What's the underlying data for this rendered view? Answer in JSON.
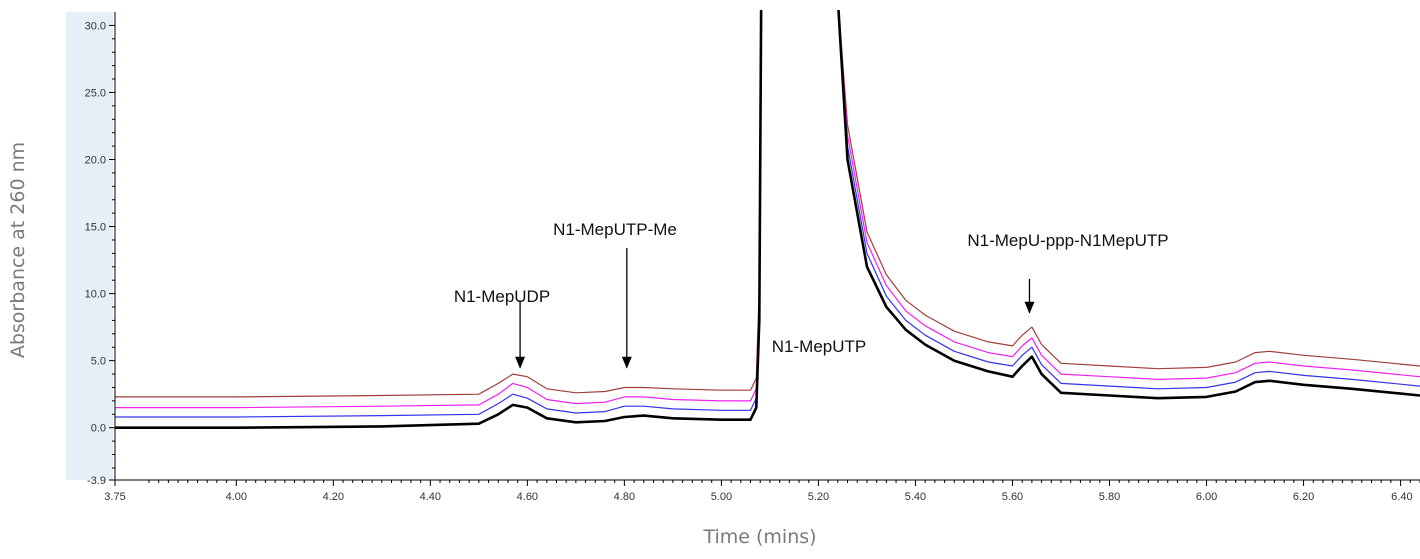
{
  "chart_data": {
    "type": "line",
    "title": "",
    "xlabel": "Time (mins)",
    "ylabel": "Absorbance at 260 nm",
    "xlim": [
      3.75,
      6.44
    ],
    "ylim": [
      -3.9,
      31.0
    ],
    "grid": false,
    "x_ticks": [
      "3.75",
      "4.00",
      "4.20",
      "4.40",
      "4.60",
      "4.80",
      "5.00",
      "5.20",
      "5.40",
      "5.60",
      "5.80",
      "6.00",
      "6.20",
      "6.40"
    ],
    "y_ticks": [
      "30.0",
      "25.0",
      "20.0",
      "15.0",
      "10.0",
      "5.0",
      "0.0",
      "-3.9"
    ],
    "series": [
      {
        "color": "#000000",
        "x": [
          3.75,
          4.0,
          4.3,
          4.5,
          4.54,
          4.57,
          4.6,
          4.64,
          4.7,
          4.76,
          4.8,
          4.84,
          4.9,
          5.0,
          5.06,
          5.072,
          5.078,
          5.082,
          5.24,
          5.26,
          5.3,
          5.34,
          5.38,
          5.42,
          5.48,
          5.55,
          5.6,
          5.62,
          5.64,
          5.66,
          5.7,
          5.8,
          5.9,
          6.0,
          6.06,
          6.1,
          6.13,
          6.2,
          6.3,
          6.44
        ],
        "y": [
          0.0,
          0.0,
          0.1,
          0.3,
          1.0,
          1.7,
          1.5,
          0.7,
          0.4,
          0.5,
          0.8,
          0.9,
          0.7,
          0.6,
          0.6,
          1.5,
          8.0,
          32.0,
          32.0,
          20.0,
          12.0,
          9.0,
          7.3,
          6.2,
          5.0,
          4.2,
          3.8,
          4.6,
          5.3,
          4.0,
          2.6,
          2.4,
          2.2,
          2.3,
          2.7,
          3.4,
          3.5,
          3.2,
          2.9,
          2.4
        ]
      },
      {
        "color": "#3333ee",
        "x": [
          3.75,
          4.0,
          4.3,
          4.5,
          4.54,
          4.57,
          4.6,
          4.64,
          4.7,
          4.76,
          4.8,
          4.84,
          4.9,
          5.0,
          5.06,
          5.072,
          5.078,
          5.082,
          5.24,
          5.26,
          5.3,
          5.34,
          5.38,
          5.42,
          5.48,
          5.55,
          5.6,
          5.62,
          5.64,
          5.66,
          5.7,
          5.8,
          5.9,
          6.0,
          6.06,
          6.1,
          6.13,
          6.2,
          6.3,
          6.44
        ],
        "y": [
          0.8,
          0.8,
          0.9,
          1.0,
          1.8,
          2.5,
          2.2,
          1.4,
          1.1,
          1.2,
          1.6,
          1.6,
          1.4,
          1.3,
          1.3,
          2.2,
          9.0,
          32.0,
          32.0,
          21.0,
          13.0,
          9.8,
          8.0,
          6.9,
          5.7,
          4.9,
          4.6,
          5.4,
          6.0,
          4.7,
          3.3,
          3.1,
          2.9,
          3.0,
          3.4,
          4.1,
          4.2,
          3.9,
          3.6,
          3.1
        ]
      },
      {
        "color": "#ee22ee",
        "x": [
          3.75,
          4.0,
          4.3,
          4.5,
          4.54,
          4.57,
          4.6,
          4.64,
          4.7,
          4.76,
          4.8,
          4.84,
          4.9,
          5.0,
          5.06,
          5.072,
          5.078,
          5.082,
          5.24,
          5.26,
          5.3,
          5.34,
          5.38,
          5.42,
          5.48,
          5.55,
          5.6,
          5.62,
          5.64,
          5.66,
          5.7,
          5.8,
          5.9,
          6.0,
          6.06,
          6.1,
          6.13,
          6.2,
          6.3,
          6.44
        ],
        "y": [
          1.5,
          1.5,
          1.6,
          1.7,
          2.5,
          3.3,
          3.0,
          2.1,
          1.8,
          1.9,
          2.3,
          2.3,
          2.1,
          2.0,
          2.0,
          2.9,
          9.8,
          32.0,
          32.0,
          21.8,
          13.8,
          10.6,
          8.7,
          7.6,
          6.4,
          5.6,
          5.3,
          6.1,
          6.7,
          5.4,
          4.0,
          3.8,
          3.6,
          3.7,
          4.1,
          4.8,
          4.9,
          4.6,
          4.3,
          3.8
        ]
      },
      {
        "color": "#a0403a",
        "x": [
          3.75,
          4.0,
          4.3,
          4.5,
          4.54,
          4.57,
          4.6,
          4.64,
          4.7,
          4.76,
          4.8,
          4.84,
          4.9,
          5.0,
          5.06,
          5.072,
          5.078,
          5.082,
          5.24,
          5.26,
          5.3,
          5.34,
          5.38,
          5.42,
          5.48,
          5.55,
          5.6,
          5.62,
          5.64,
          5.66,
          5.7,
          5.8,
          5.9,
          6.0,
          6.06,
          6.1,
          6.13,
          6.2,
          6.3,
          6.44
        ],
        "y": [
          2.3,
          2.3,
          2.4,
          2.5,
          3.3,
          4.0,
          3.8,
          2.9,
          2.6,
          2.7,
          3.0,
          3.0,
          2.9,
          2.8,
          2.8,
          3.7,
          10.6,
          32.0,
          32.0,
          22.6,
          14.6,
          11.4,
          9.5,
          8.4,
          7.2,
          6.4,
          6.1,
          6.9,
          7.5,
          6.2,
          4.8,
          4.6,
          4.4,
          4.5,
          4.9,
          5.6,
          5.7,
          5.4,
          5.1,
          4.6
        ]
      }
    ],
    "annotations": [
      {
        "text": "N1-MepUDP",
        "arrow": {
          "x": 4.585,
          "y_start": 9.5,
          "y_end": 4.4
        }
      },
      {
        "text": "N1-MepUTP-Me",
        "arrow": {
          "x": 4.805,
          "y_start": 13.4,
          "y_end": 4.4
        }
      },
      {
        "text": "N1-MepUTP",
        "arrow": null
      },
      {
        "text": "N1-MepU-ppp-N1MepUTP",
        "arrow": {
          "x": 5.635,
          "y_start": 11.1,
          "y_end": 8.5
        }
      }
    ]
  }
}
